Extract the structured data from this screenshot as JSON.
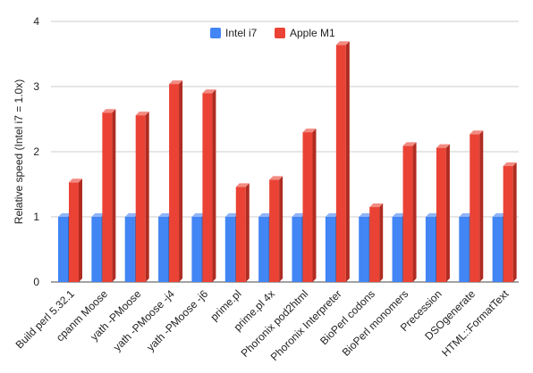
{
  "chart_data": {
    "type": "bar",
    "subtype": "3d-clustered",
    "title": "",
    "xlabel": "",
    "ylabel": "Relative speed (Intel i7 = 1.0x)",
    "ylim": [
      0,
      4
    ],
    "yticks": [
      0,
      1,
      2,
      3,
      4
    ],
    "grid": true,
    "legend_position": "top",
    "categories": [
      "Build perl 5.32.1",
      "cpanm Moose",
      "yath -PMoose",
      "yath -PMoose -j4",
      "yath -PMoose -j6",
      "prime.pl",
      "prime.pl 4x",
      "Phoronix pod2html",
      "Phoronix Interpreter",
      "BioPerl codons",
      "BioPerl monomers",
      "Precession",
      "DSOgenerate",
      "HTML::FormatText"
    ],
    "series": [
      {
        "name": "Intel i7",
        "color": "#4285f4",
        "side_color": "#2f62b8",
        "top_color": "#8fb4f8",
        "values": [
          1,
          1,
          1,
          1,
          1,
          1,
          1,
          1,
          1,
          1,
          1,
          1,
          1,
          1
        ]
      },
      {
        "name": "Apple M1",
        "color": "#ea4335",
        "side_color": "#b02c22",
        "top_color": "#f28b82",
        "values": [
          1.53,
          2.6,
          2.56,
          3.04,
          2.9,
          1.46,
          1.57,
          2.3,
          3.64,
          1.15,
          2.09,
          2.06,
          2.27,
          1.78
        ]
      }
    ]
  }
}
